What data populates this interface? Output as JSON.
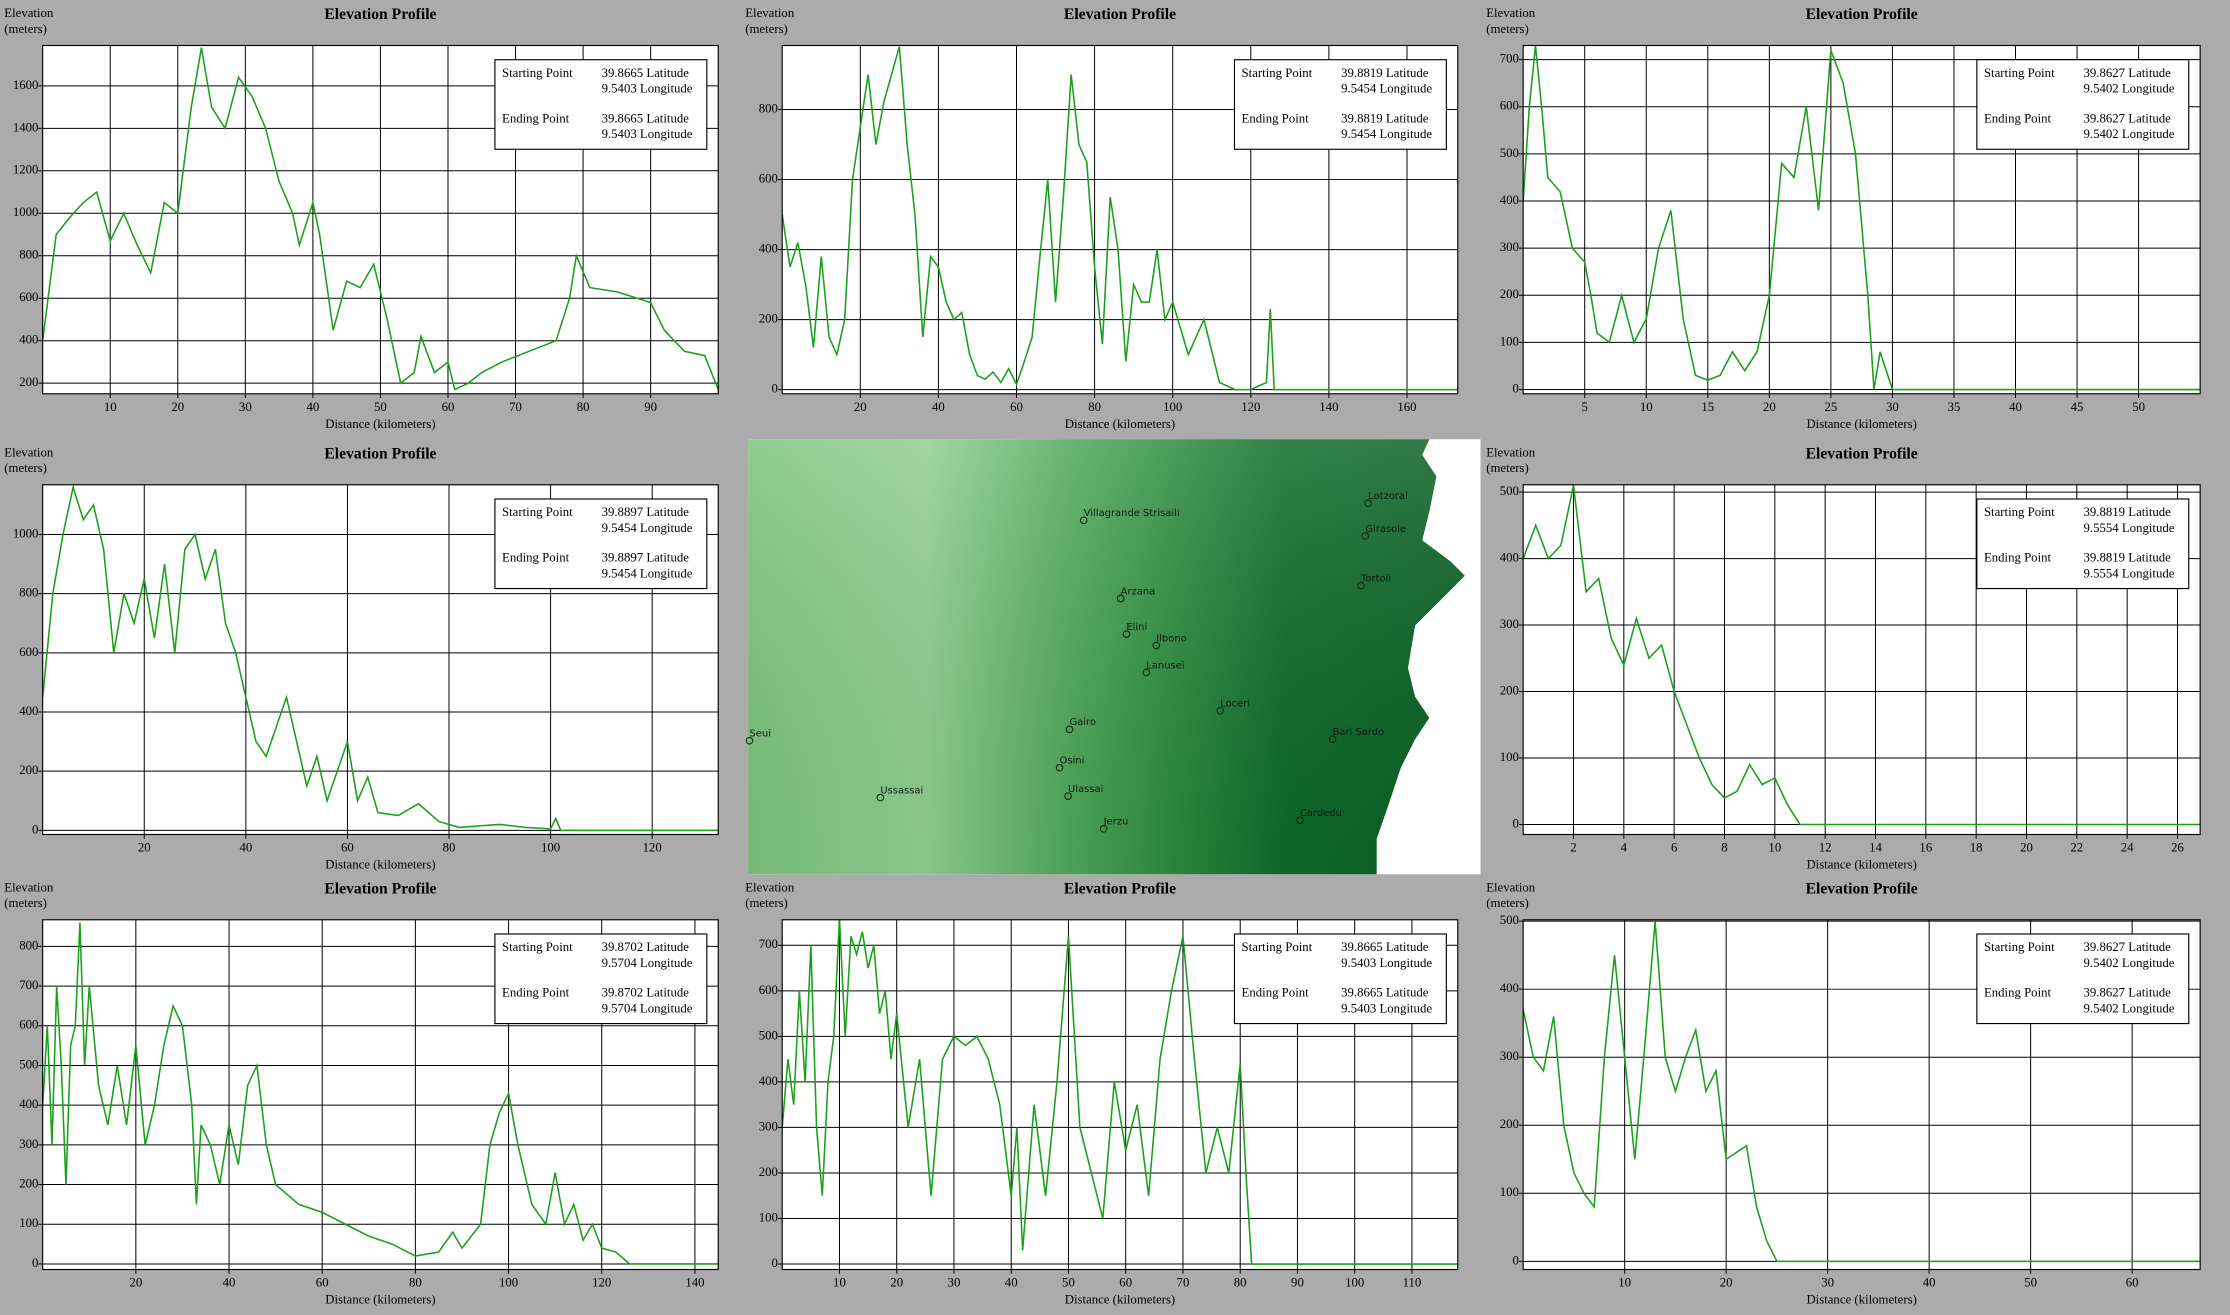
{
  "chart_data": [
    {
      "type": "line",
      "title": "Elevation Profile",
      "ylabel": [
        "Elevation",
        "(meters)"
      ],
      "xlabel": "Distance (kilometers)",
      "grid": true,
      "x": [
        0,
        2,
        4,
        6,
        8,
        10,
        12,
        14,
        16,
        18,
        20,
        22,
        23.5,
        25,
        27,
        29,
        31,
        33,
        35,
        37,
        38,
        40,
        41,
        43,
        45,
        47,
        49,
        51,
        53,
        55,
        56,
        58,
        60,
        61,
        63,
        65,
        68,
        72,
        76,
        78,
        79,
        81,
        85,
        90,
        92,
        95,
        98,
        100
      ],
      "series": [
        {
          "color": "#1aa01a",
          "values": [
            400,
            900,
            980,
            1050,
            1100,
            870,
            1000,
            850,
            720,
            1050,
            1000,
            1500,
            1780,
            1500,
            1400,
            1640,
            1550,
            1400,
            1150,
            1000,
            850,
            1050,
            900,
            450,
            680,
            650,
            760,
            500,
            200,
            250,
            420,
            250,
            300,
            170,
            200,
            250,
            300,
            350,
            400,
            600,
            800,
            650,
            630,
            580,
            450,
            350,
            330,
            170
          ]
        }
      ],
      "xlim": [
        0,
        100
      ],
      "ylim": [
        150,
        1790
      ],
      "xticks": [
        10,
        20,
        30,
        40,
        50,
        60,
        70,
        80,
        90
      ],
      "yticks": [
        200,
        400,
        600,
        800,
        1000,
        1200,
        1400,
        1600
      ],
      "info": {
        "start_label": "Starting Point",
        "start_lat": "39.8665 Latitude",
        "start_lon": "9.5403 Longitude",
        "end_label": "Ending Point",
        "end_lat": "39.8665 Latitude",
        "end_lon": "9.5403 Longitude"
      }
    },
    {
      "type": "line",
      "title": "Elevation Profile",
      "ylabel": [
        "Elevation",
        "(meters)"
      ],
      "xlabel": "Distance (kilometers)",
      "grid": true,
      "x": [
        0,
        2,
        4,
        6,
        8,
        10,
        12,
        14,
        16,
        18,
        20,
        22,
        24,
        26,
        28,
        30,
        32,
        34,
        36,
        38,
        40,
        42,
        44,
        46,
        48,
        50,
        52,
        54,
        56,
        58,
        60,
        62,
        64,
        66,
        68,
        70,
        72,
        74,
        76,
        78,
        80,
        82,
        84,
        86,
        88,
        90,
        92,
        94,
        96,
        98,
        100,
        104,
        108,
        112,
        116,
        120,
        124,
        125,
        126,
        173
      ],
      "series": [
        {
          "color": "#1aa01a",
          "values": [
            500,
            350,
            420,
            300,
            120,
            380,
            150,
            100,
            200,
            600,
            750,
            900,
            700,
            820,
            900,
            980,
            700,
            500,
            150,
            380,
            350,
            250,
            200,
            220,
            100,
            40,
            30,
            50,
            20,
            60,
            15,
            80,
            150,
            380,
            600,
            250,
            550,
            900,
            700,
            650,
            350,
            130,
            550,
            400,
            80,
            300,
            250,
            250,
            400,
            200,
            250,
            100,
            200,
            20,
            0,
            0,
            20,
            230,
            0,
            0
          ]
        }
      ],
      "xlim": [
        0,
        173
      ],
      "ylim": [
        -12,
        983
      ],
      "xticks": [
        20,
        40,
        60,
        80,
        100,
        120,
        140,
        160
      ],
      "yticks": [
        0,
        200,
        400,
        600,
        800
      ],
      "info": {
        "start_label": "Starting Point",
        "start_lat": "39.8819 Latitude",
        "start_lon": "9.5454 Longitude",
        "end_label": "Ending Point",
        "end_lat": "39.8819 Latitude",
        "end_lon": "9.5454 Longitude"
      }
    },
    {
      "type": "line",
      "title": "Elevation Profile",
      "ylabel": [
        "Elevation",
        "(meters)"
      ],
      "xlabel": "Distance (kilometers)",
      "grid": true,
      "x": [
        0,
        0.5,
        1,
        1.5,
        2,
        3,
        4,
        5,
        5.5,
        6,
        7,
        8,
        9,
        10,
        11,
        12,
        13,
        14,
        15,
        16,
        17,
        18,
        19,
        20,
        21,
        22,
        23,
        24,
        25,
        26,
        27,
        28,
        28.5,
        29,
        30,
        55
      ],
      "series": [
        {
          "color": "#1aa01a",
          "values": [
            400,
            600,
            730,
            600,
            450,
            420,
            300,
            270,
            200,
            120,
            100,
            200,
            100,
            150,
            300,
            380,
            150,
            30,
            20,
            30,
            80,
            40,
            80,
            200,
            480,
            450,
            600,
            380,
            720,
            650,
            500,
            200,
            0,
            80,
            0,
            0
          ]
        }
      ],
      "xlim": [
        0,
        55
      ],
      "ylim": [
        -9,
        730
      ],
      "xticks": [
        5,
        10,
        15,
        20,
        25,
        30,
        35,
        40,
        45,
        50
      ],
      "yticks": [
        0,
        100,
        200,
        300,
        400,
        500,
        600,
        700
      ],
      "info": {
        "start_label": "Starting Point",
        "start_lat": "39.8627 Latitude",
        "start_lon": "9.5402 Longitude",
        "end_label": "Ending Point",
        "end_lat": "39.8627 Latitude",
        "end_lon": "9.5402 Longitude"
      }
    },
    {
      "type": "line",
      "title": "Elevation Profile",
      "ylabel": [
        "Elevation",
        "(meters)"
      ],
      "xlabel": "Distance (kilometers)",
      "grid": true,
      "x": [
        0,
        2,
        4,
        6,
        8,
        10,
        12,
        14,
        16,
        18,
        20,
        22,
        24,
        26,
        28,
        30,
        32,
        34,
        36,
        38,
        40,
        42,
        44,
        46,
        48,
        50,
        52,
        54,
        56,
        58,
        60,
        62,
        64,
        66,
        70,
        74,
        78,
        82,
        86,
        90,
        95,
        100,
        101,
        102,
        133
      ],
      "series": [
        {
          "color": "#1aa01a",
          "values": [
            450,
            800,
            1000,
            1160,
            1050,
            1100,
            950,
            600,
            800,
            700,
            850,
            650,
            900,
            600,
            950,
            1000,
            850,
            950,
            700,
            600,
            450,
            300,
            250,
            350,
            450,
            300,
            150,
            250,
            100,
            200,
            300,
            100,
            180,
            60,
            50,
            90,
            30,
            10,
            15,
            20,
            10,
            5,
            40,
            0,
            0
          ]
        }
      ],
      "xlim": [
        0,
        133
      ],
      "ylim": [
        -14,
        1168
      ],
      "xticks": [
        20,
        40,
        60,
        80,
        100,
        120
      ],
      "yticks": [
        0,
        200,
        400,
        600,
        800,
        1000
      ],
      "info": {
        "start_label": "Starting Point",
        "start_lat": "39.8897 Latitude",
        "start_lon": "9.5454 Longitude",
        "end_label": "Ending Point",
        "end_lat": "39.8897 Latitude",
        "end_lon": "9.5454 Longitude"
      }
    },
    {
      "type": "line",
      "title": "Elevation Profile",
      "ylabel": [
        "Elevation",
        "(meters)"
      ],
      "xlabel": "Distance (kilometers)",
      "grid": true,
      "x": [
        0,
        0.5,
        1,
        1.5,
        2,
        2.5,
        3,
        3.5,
        4,
        4.5,
        5,
        5.5,
        6,
        6.5,
        7,
        7.5,
        8,
        8.5,
        9,
        9.5,
        10,
        10.5,
        11,
        26.9
      ],
      "series": [
        {
          "color": "#1aa01a",
          "values": [
            400,
            450,
            400,
            420,
            510,
            350,
            370,
            280,
            240,
            310,
            250,
            270,
            200,
            150,
            100,
            60,
            40,
            50,
            90,
            60,
            70,
            30,
            0,
            0
          ]
        }
      ],
      "xlim": [
        0,
        26.9
      ],
      "ylim": [
        -15,
        511
      ],
      "xticks": [
        2,
        4,
        6,
        8,
        10,
        12,
        14,
        16,
        18,
        20,
        22,
        24,
        26
      ],
      "yticks": [
        0,
        100,
        200,
        300,
        400,
        500
      ],
      "info": {
        "start_label": "Starting Point",
        "start_lat": "39.8819 Latitude",
        "start_lon": "9.5554 Longitude",
        "end_label": "Ending Point",
        "end_lat": "39.8819 Latitude",
        "end_lon": "9.5554 Longitude"
      }
    },
    {
      "type": "line",
      "title": "Elevation Profile",
      "ylabel": [
        "Elevation",
        "(meters)"
      ],
      "xlabel": "Distance (kilometers)",
      "grid": true,
      "x": [
        0,
        1,
        2,
        3,
        4,
        5,
        6,
        7,
        8,
        9,
        10,
        12,
        14,
        16,
        18,
        20,
        22,
        24,
        26,
        28,
        30,
        32,
        33,
        34,
        36,
        38,
        40,
        42,
        44,
        46,
        48,
        50,
        55,
        60,
        65,
        70,
        75,
        80,
        85,
        88,
        90,
        94,
        96,
        98,
        100,
        102,
        105,
        108,
        110,
        112,
        114,
        116,
        118,
        120,
        123,
        126,
        145
      ],
      "series": [
        {
          "color": "#1aa01a",
          "values": [
            400,
            600,
            300,
            700,
            500,
            200,
            550,
            600,
            860,
            500,
            700,
            450,
            350,
            500,
            350,
            550,
            300,
            400,
            550,
            650,
            600,
            400,
            150,
            350,
            300,
            200,
            350,
            250,
            450,
            500,
            300,
            200,
            150,
            130,
            100,
            70,
            50,
            20,
            30,
            80,
            40,
            100,
            300,
            380,
            430,
            300,
            150,
            100,
            230,
            100,
            150,
            60,
            100,
            40,
            30,
            0,
            0
          ]
        }
      ],
      "xlim": [
        0,
        145
      ],
      "ylim": [
        -14,
        867
      ],
      "xticks": [
        20,
        40,
        60,
        80,
        100,
        120,
        140
      ],
      "yticks": [
        0,
        100,
        200,
        300,
        400,
        500,
        600,
        700,
        800
      ],
      "info": {
        "start_label": "Starting Point",
        "start_lat": "39.8702 Latitude",
        "start_lon": "9.5704 Longitude",
        "end_label": "Ending Point",
        "end_lat": "39.8702 Latitude",
        "end_lon": "9.5704 Longitude"
      }
    },
    {
      "type": "line",
      "title": "Elevation Profile",
      "ylabel": [
        "Elevation",
        "(meters)"
      ],
      "xlabel": "Distance (kilometers)",
      "grid": true,
      "x": [
        0,
        1,
        2,
        3,
        4,
        5,
        6,
        7,
        8,
        9,
        10,
        11,
        12,
        13,
        14,
        15,
        16,
        17,
        18,
        19,
        20,
        22,
        24,
        26,
        28,
        30,
        32,
        34,
        36,
        38,
        40,
        41,
        42,
        44,
        46,
        48,
        50,
        52,
        54,
        56,
        58,
        60,
        62,
        64,
        66,
        68,
        70,
        72,
        74,
        76,
        78,
        80,
        81,
        82,
        118
      ],
      "series": [
        {
          "color": "#1aa01a",
          "values": [
            300,
            450,
            350,
            600,
            400,
            700,
            300,
            150,
            400,
            500,
            760,
            500,
            720,
            680,
            730,
            650,
            700,
            550,
            600,
            450,
            550,
            300,
            450,
            150,
            450,
            500,
            480,
            500,
            450,
            350,
            150,
            300,
            30,
            350,
            150,
            400,
            720,
            300,
            200,
            100,
            400,
            250,
            350,
            150,
            450,
            600,
            720,
            450,
            200,
            300,
            200,
            440,
            200,
            0,
            0
          ]
        }
      ],
      "xlim": [
        0,
        118
      ],
      "ylim": [
        -12,
        756
      ],
      "xticks": [
        10,
        20,
        30,
        40,
        50,
        60,
        70,
        80,
        90,
        100,
        110
      ],
      "yticks": [
        0,
        100,
        200,
        300,
        400,
        500,
        600,
        700
      ],
      "info": {
        "start_label": "Starting Point",
        "start_lat": "39.8665 Latitude",
        "start_lon": "9.5403 Longitude",
        "end_label": "Ending Point",
        "end_lat": "39.8665 Latitude",
        "end_lon": "9.5403 Longitude"
      }
    },
    {
      "type": "line",
      "title": "Elevation Profile",
      "ylabel": [
        "Elevation",
        "(meters)"
      ],
      "xlabel": "Distance (kilometers)",
      "grid": true,
      "x": [
        0,
        1,
        2,
        3,
        4,
        5,
        6,
        7,
        8,
        9,
        10,
        11,
        12,
        13,
        14,
        15,
        16,
        17,
        18,
        19,
        20,
        21,
        22,
        23,
        24,
        25,
        66.7
      ],
      "series": [
        {
          "color": "#1aa01a",
          "values": [
            370,
            300,
            280,
            360,
            200,
            130,
            100,
            80,
            300,
            450,
            300,
            150,
            320,
            500,
            300,
            250,
            300,
            340,
            250,
            280,
            150,
            160,
            170,
            80,
            30,
            0,
            0
          ]
        }
      ],
      "xlim": [
        0,
        66.7
      ],
      "ylim": [
        -12,
        502
      ],
      "xticks": [
        10,
        20,
        30,
        40,
        50,
        60
      ],
      "yticks": [
        0,
        100,
        200,
        300,
        400,
        500
      ],
      "info": {
        "start_label": "Starting Point",
        "start_lat": "39.8627 Latitude",
        "start_lon": "9.5402 Longitude",
        "end_label": "Ending Point",
        "end_lat": "39.8627 Latitude",
        "end_lon": "9.5402 Longitude"
      }
    }
  ],
  "map": {
    "places": [
      "Villagrande Strisaili",
      "Lotzorai",
      "Girasole",
      "Tortoli",
      "Arzana",
      "Elini",
      "Ilbono",
      "Lanusei",
      "Loceri",
      "Seui",
      "Gairo",
      "Bari Sardo",
      "Osini",
      "Ussassai",
      "Ulassai",
      "Cardedu",
      "Jerzu"
    ]
  }
}
